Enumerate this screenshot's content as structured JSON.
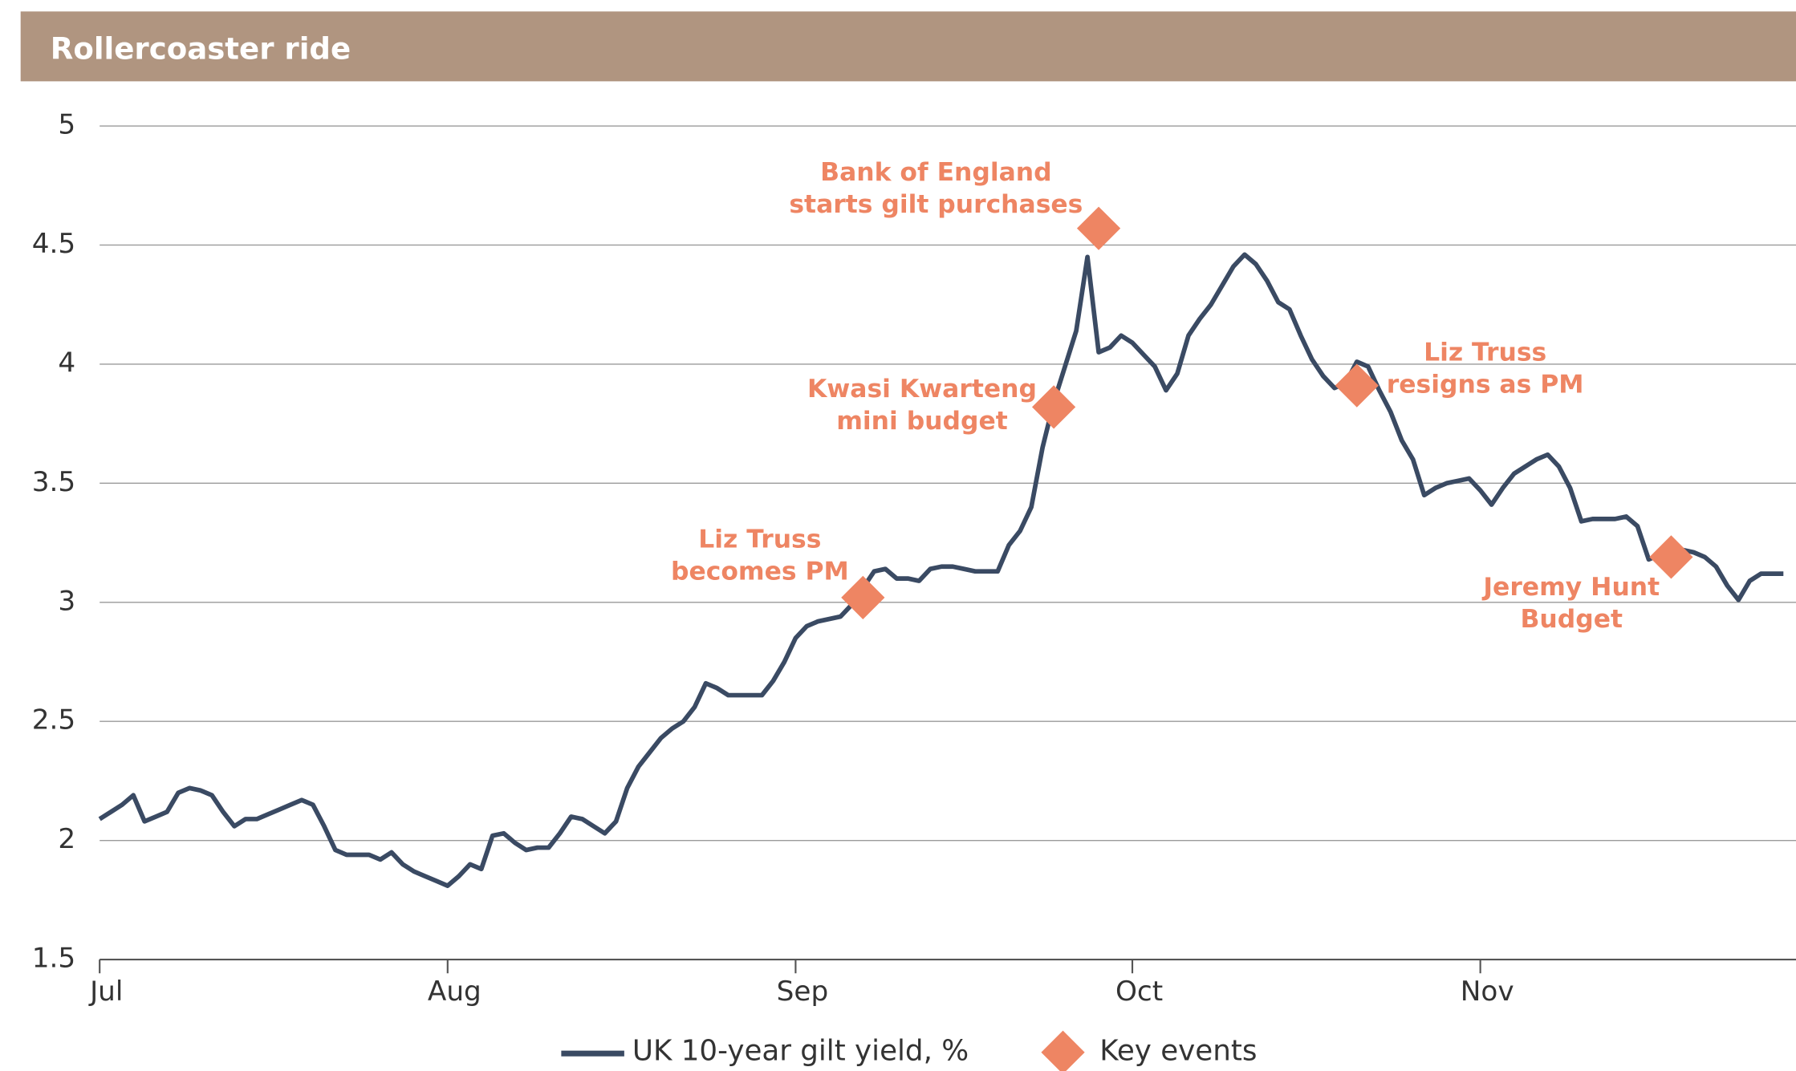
{
  "chart_data": {
    "type": "line",
    "title": "Rollercoaster ride",
    "categories": [
      "Jul",
      null,
      null,
      null,
      null,
      null,
      null,
      null,
      null,
      null,
      null,
      null,
      null,
      null,
      null,
      null,
      null,
      null,
      null,
      null,
      null,
      null,
      null,
      null,
      null,
      null,
      null,
      null,
      null,
      null,
      null,
      "Aug",
      null,
      null,
      null,
      null,
      null,
      null,
      null,
      null,
      null,
      null,
      null,
      null,
      null,
      null,
      null,
      null,
      null,
      null,
      null,
      null,
      null,
      null,
      null,
      null,
      null,
      null,
      null,
      null,
      null,
      null,
      "Sep",
      null,
      null,
      null,
      null,
      null,
      null,
      null,
      null,
      null,
      null,
      null,
      null,
      null,
      null,
      null,
      null,
      null,
      null,
      null,
      null,
      null,
      null,
      null,
      null,
      null,
      null,
      null,
      null,
      null,
      "Oct",
      null,
      null,
      null,
      null,
      null,
      null,
      null,
      null,
      null,
      null,
      null,
      null,
      null,
      null,
      null,
      null,
      null,
      null,
      null,
      null,
      null,
      null,
      null,
      null,
      null,
      null,
      null,
      null,
      null,
      null,
      "Nov",
      null,
      null,
      null,
      null,
      null,
      null,
      null,
      null,
      null,
      null,
      null,
      null,
      null,
      null,
      null,
      null,
      null,
      null,
      null,
      null,
      null,
      null,
      null,
      null,
      null,
      null,
      null
    ],
    "series": [
      {
        "name": "UK 10-year gilt yield, %",
        "color": "#3a4a63",
        "values": [
          2.09,
          2.12,
          2.15,
          2.19,
          2.08,
          2.1,
          2.12,
          2.2,
          2.22,
          2.21,
          2.19,
          2.12,
          2.06,
          2.09,
          2.09,
          2.11,
          2.13,
          2.15,
          2.17,
          2.15,
          2.06,
          1.96,
          1.94,
          1.94,
          1.94,
          1.92,
          1.95,
          1.9,
          1.87,
          1.85,
          1.83,
          1.81,
          1.85,
          1.9,
          1.88,
          2.02,
          2.03,
          1.99,
          1.96,
          1.97,
          1.97,
          2.03,
          2.1,
          2.09,
          2.06,
          2.03,
          2.08,
          2.22,
          2.31,
          2.37,
          2.43,
          2.47,
          2.5,
          2.56,
          2.66,
          2.64,
          2.61,
          2.61,
          2.61,
          2.61,
          2.67,
          2.75,
          2.85,
          2.9,
          2.92,
          2.93,
          2.94,
          2.99,
          3.06,
          3.13,
          3.14,
          3.1,
          3.1,
          3.09,
          3.14,
          3.15,
          3.15,
          3.14,
          3.13,
          3.13,
          3.13,
          3.24,
          3.3,
          3.4,
          3.65,
          3.84,
          3.99,
          4.14,
          4.45,
          4.05,
          4.07,
          4.12,
          4.09,
          4.04,
          3.99,
          3.89,
          3.96,
          4.12,
          4.19,
          4.25,
          4.33,
          4.41,
          4.46,
          4.42,
          4.35,
          4.26,
          4.23,
          4.12,
          4.02,
          3.95,
          3.9,
          3.92,
          4.01,
          3.99,
          3.89,
          3.8,
          3.68,
          3.6,
          3.45,
          3.48,
          3.5,
          3.51,
          3.52,
          3.47,
          3.41,
          3.48,
          3.54,
          3.57,
          3.6,
          3.62,
          3.57,
          3.48,
          3.34,
          3.35,
          3.35,
          3.35,
          3.36,
          3.32,
          3.18,
          3.2,
          3.23,
          3.22,
          3.21,
          3.19,
          3.15,
          3.07,
          3.01,
          3.09,
          3.12,
          3.12,
          3.12
        ]
      },
      {
        "name": "Key events",
        "color": "#ee8563",
        "values": [
          null,
          null,
          null,
          null,
          null,
          null,
          null,
          null,
          null,
          null,
          null,
          null,
          null,
          null,
          null,
          null,
          null,
          null,
          null,
          null,
          null,
          null,
          null,
          null,
          null,
          null,
          null,
          null,
          null,
          null,
          null,
          null,
          null,
          null,
          null,
          null,
          null,
          null,
          null,
          null,
          null,
          null,
          null,
          null,
          null,
          null,
          null,
          null,
          null,
          null,
          null,
          null,
          null,
          null,
          null,
          null,
          null,
          null,
          null,
          null,
          null,
          null,
          null,
          null,
          null,
          null,
          null,
          null,
          3.02,
          null,
          null,
          null,
          null,
          null,
          null,
          null,
          null,
          null,
          null,
          null,
          null,
          null,
          null,
          null,
          null,
          3.82,
          null,
          null,
          null,
          4.57,
          null,
          null,
          null,
          null,
          null,
          null,
          null,
          null,
          null,
          null,
          null,
          null,
          null,
          null,
          null,
          null,
          null,
          null,
          null,
          null,
          null,
          null,
          3.91,
          null,
          null,
          null,
          null,
          null,
          null,
          null,
          null,
          null,
          null,
          null,
          null,
          null,
          null,
          null,
          null,
          null,
          null,
          null,
          null,
          null,
          null,
          null,
          null,
          null,
          null,
          null,
          3.19,
          null,
          null,
          null,
          null,
          null,
          null,
          null,
          null,
          null,
          null
        ]
      }
    ],
    "annotations": [
      [
        "Liz Truss",
        "becomes PM"
      ],
      [
        "Kwasi Kwarteng",
        "mini budget"
      ],
      [
        "Bank of England",
        "starts gilt purchases"
      ],
      [
        "Liz Truss",
        "resigns as PM"
      ],
      [
        "Jeremy Hunt",
        "Budget"
      ]
    ],
    "ylim": [
      1.5,
      5
    ],
    "yticks": [
      1.5,
      2,
      2.5,
      3,
      3.5,
      4,
      4.5,
      5
    ],
    "grid": true
  }
}
